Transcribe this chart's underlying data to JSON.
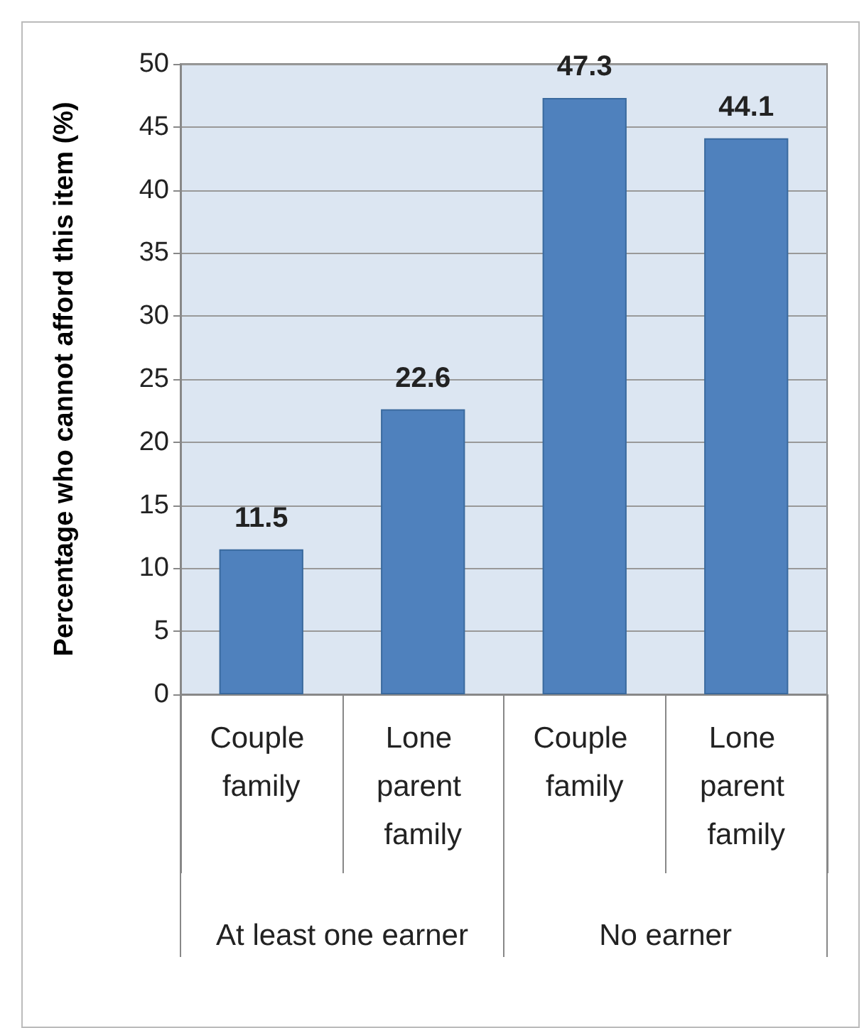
{
  "chart_data": {
    "type": "bar",
    "ylabel": "Percentage who cannot afford this item (%)",
    "categories": [
      "Couple family",
      "Lone parent family",
      "Couple family",
      "Lone parent family"
    ],
    "values": [
      11.5,
      22.6,
      47.3,
      44.1
    ],
    "color": "#4f81bd",
    "ylim": [
      0,
      50
    ],
    "yticks": [
      0,
      5,
      10,
      15,
      20,
      25,
      30,
      35,
      40,
      45,
      50
    ],
    "grid": "y",
    "data_labels": true,
    "annotations": [
      "At least one earner",
      "No earner"
    ]
  }
}
